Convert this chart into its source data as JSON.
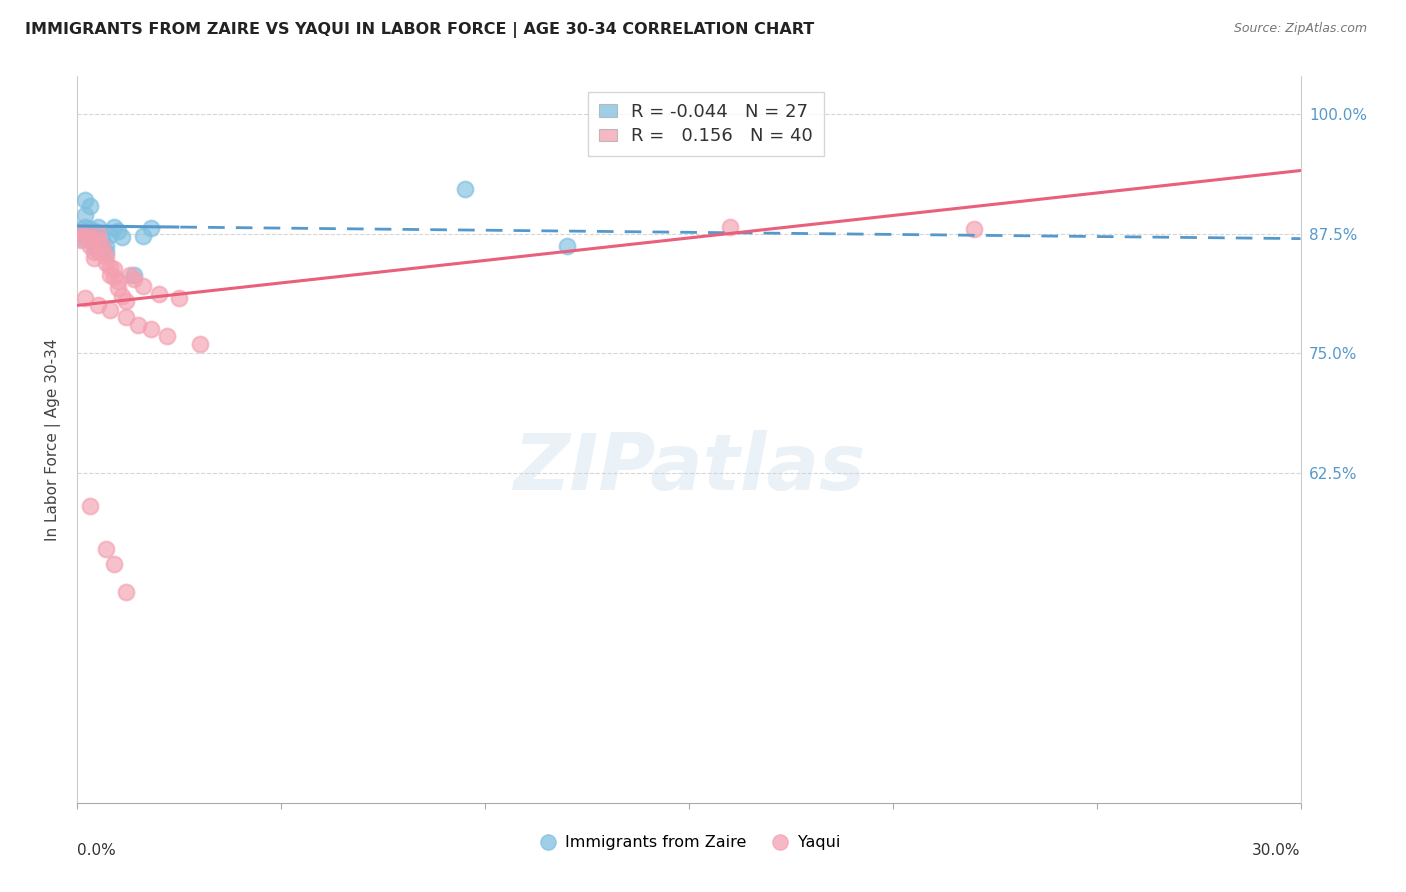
{
  "title": "IMMIGRANTS FROM ZAIRE VS YAQUI IN LABOR FORCE | AGE 30-34 CORRELATION CHART",
  "source": "Source: ZipAtlas.com",
  "ylabel": "In Labor Force | Age 30-34",
  "xmin": 0.0,
  "xmax": 0.3,
  "ymin": 0.28,
  "ymax": 1.04,
  "right_ytick_vals": [
    1.0,
    0.875,
    0.75,
    0.625
  ],
  "right_yticklabels": [
    "100.0%",
    "87.5%",
    "75.0%",
    "62.5%"
  ],
  "bottom_xtick_left": "0.0%",
  "bottom_xtick_right": "30.0%",
  "legend_r_blue": "-0.044",
  "legend_n_blue": "27",
  "legend_r_pink": " 0.156",
  "legend_n_pink": "40",
  "blue_color": "#7fbfdf",
  "pink_color": "#f4a0b0",
  "blue_line_color": "#5599cc",
  "pink_line_color": "#e8607a",
  "watermark": "ZIPatlas",
  "background_color": "#ffffff",
  "grid_color": "#cccccc",
  "legend_bottom_blue": "Immigrants from Zaire",
  "legend_bottom_pink": "Yaqui",
  "zaire_x": [
    0.001,
    0.001,
    0.001,
    0.002,
    0.002,
    0.002,
    0.003,
    0.003,
    0.003,
    0.004,
    0.004,
    0.005,
    0.005,
    0.006,
    0.007,
    0.007,
    0.008,
    0.009,
    0.01,
    0.011,
    0.014,
    0.016,
    0.018,
    0.095,
    0.12,
    0.002,
    0.003
  ],
  "zaire_y": [
    0.88,
    0.875,
    0.87,
    0.894,
    0.882,
    0.876,
    0.88,
    0.873,
    0.868,
    0.862,
    0.878,
    0.882,
    0.857,
    0.87,
    0.862,
    0.856,
    0.874,
    0.882,
    0.878,
    0.872,
    0.832,
    0.873,
    0.881,
    0.922,
    0.862,
    0.91,
    0.904
  ],
  "yaqui_x": [
    0.001,
    0.001,
    0.002,
    0.003,
    0.003,
    0.004,
    0.004,
    0.005,
    0.005,
    0.006,
    0.006,
    0.007,
    0.007,
    0.008,
    0.008,
    0.009,
    0.009,
    0.01,
    0.01,
    0.011,
    0.012,
    0.013,
    0.014,
    0.016,
    0.02,
    0.025,
    0.002,
    0.005,
    0.008,
    0.012,
    0.015,
    0.018,
    0.022,
    0.03,
    0.003,
    0.007,
    0.009,
    0.012,
    0.22,
    0.16
  ],
  "yaqui_y": [
    0.875,
    0.868,
    0.875,
    0.87,
    0.862,
    0.856,
    0.85,
    0.875,
    0.868,
    0.862,
    0.856,
    0.852,
    0.844,
    0.84,
    0.832,
    0.838,
    0.83,
    0.825,
    0.818,
    0.81,
    0.805,
    0.832,
    0.828,
    0.82,
    0.812,
    0.808,
    0.808,
    0.8,
    0.795,
    0.788,
    0.78,
    0.775,
    0.768,
    0.76,
    0.59,
    0.545,
    0.53,
    0.5,
    0.88,
    0.882
  ]
}
